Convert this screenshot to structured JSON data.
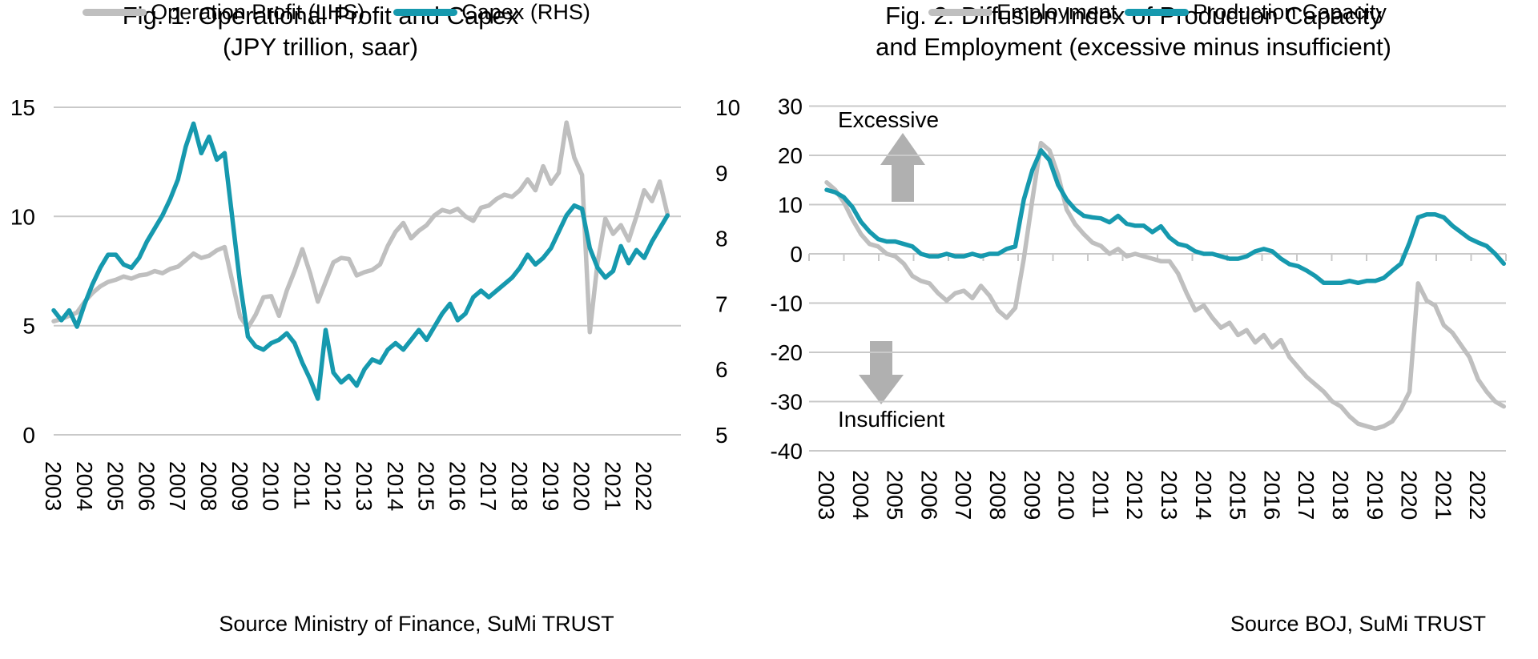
{
  "colors": {
    "profit_gray": "#BFBFBF",
    "capex_teal": "#1699AE",
    "gridline": "#C9C9C9",
    "arrow_gray": "#B0B0B0",
    "text": "#000000"
  },
  "fig1": {
    "title_line1": "Fig. 1. Operational Profit and Capex",
    "title_line2": "(JPY trillion, saar)",
    "source": "Source Ministry of Finance, SuMi TRUST",
    "legend": {
      "profit": "Operation Profit (LHS)",
      "capex": "Capex (RHS)"
    },
    "chart_data": {
      "type": "line",
      "x_unit": "quarterly",
      "x_range": [
        "2003",
        "2022"
      ],
      "x_tick_labels": [
        "2003",
        "2004",
        "2005",
        "2006",
        "2007",
        "2008",
        "2009",
        "2010",
        "2011",
        "2012",
        "2013",
        "2014",
        "2015",
        "2016",
        "2017",
        "2018",
        "2019",
        "2020",
        "2021",
        "2022"
      ],
      "left_axis": {
        "title": "JPY trillion, saar",
        "label_values": [
          15,
          10,
          5,
          0
        ],
        "range": [
          0,
          15
        ]
      },
      "right_axis": {
        "label_values": [
          10,
          9,
          8,
          7,
          6,
          5
        ],
        "range": [
          5,
          10
        ]
      },
      "grid": "horizontal",
      "legend_position": "bottom",
      "series": [
        {
          "name": "Operation Profit (LHS)",
          "axis": "left",
          "color_key": "profit_gray",
          "values": [
            5.2,
            5.3,
            5.45,
            5.6,
            6.1,
            6.5,
            6.8,
            7.0,
            7.1,
            7.25,
            7.15,
            7.3,
            7.35,
            7.5,
            7.4,
            7.6,
            7.7,
            8.0,
            8.3,
            8.1,
            8.2,
            8.45,
            8.6,
            7.0,
            5.4,
            4.9,
            5.5,
            6.3,
            6.35,
            5.45,
            6.6,
            7.5,
            8.5,
            7.4,
            6.1,
            7.0,
            7.9,
            8.1,
            8.05,
            7.3,
            7.45,
            7.55,
            7.8,
            8.65,
            9.3,
            9.7,
            9.0,
            9.35,
            9.6,
            10.05,
            10.3,
            10.2,
            10.35,
            10.0,
            9.8,
            10.4,
            10.5,
            10.8,
            11.0,
            10.9,
            11.2,
            11.7,
            11.2,
            12.3,
            11.5,
            12.0,
            14.3,
            12.7,
            11.9,
            4.7,
            7.9,
            9.9,
            9.2,
            9.6,
            8.9,
            10.0,
            11.2,
            10.7,
            11.6,
            10.1
          ]
        },
        {
          "name": "Capex (RHS)",
          "axis": "right",
          "color_key": "capex_teal",
          "values": [
            6.9,
            6.75,
            6.9,
            6.65,
            7.0,
            7.3,
            7.55,
            7.75,
            7.75,
            7.6,
            7.55,
            7.7,
            7.95,
            8.15,
            8.35,
            8.6,
            8.9,
            9.4,
            9.75,
            9.3,
            9.55,
            9.2,
            9.3,
            8.3,
            7.3,
            6.5,
            6.35,
            6.3,
            6.4,
            6.45,
            6.55,
            6.4,
            6.1,
            5.85,
            5.55,
            6.6,
            5.95,
            5.8,
            5.9,
            5.75,
            6.0,
            6.15,
            6.1,
            6.3,
            6.4,
            6.3,
            6.45,
            6.6,
            6.45,
            6.65,
            6.85,
            7.0,
            6.75,
            6.85,
            7.1,
            7.2,
            7.1,
            7.2,
            7.3,
            7.4,
            7.55,
            7.75,
            7.6,
            7.7,
            7.85,
            8.1,
            8.35,
            8.5,
            8.45,
            7.85,
            7.55,
            7.4,
            7.5,
            7.88,
            7.62,
            7.82,
            7.7,
            7.95,
            8.15,
            8.35
          ]
        }
      ]
    }
  },
  "fig2": {
    "title_line1": "Fig. 2. Diffusion Index of Production Capacity",
    "title_line2": "and Employment (excessive minus insufficient)",
    "source": "Source BOJ, SuMi TRUST",
    "legend": {
      "employment": "Employment",
      "capacity": "Production Capacity"
    },
    "annotations": {
      "top": "Excessive",
      "bottom": "Insufficient"
    },
    "chart_data": {
      "type": "line",
      "x_unit": "quarterly",
      "x_range": [
        "2003",
        "2022"
      ],
      "x_tick_labels": [
        "2003",
        "2004",
        "2005",
        "2006",
        "2007",
        "2008",
        "2009",
        "2010",
        "2011",
        "2012",
        "2013",
        "2014",
        "2015",
        "2016",
        "2017",
        "2018",
        "2019",
        "2020",
        "2021",
        "2022"
      ],
      "left_axis": {
        "label_values": [
          30,
          20,
          10,
          0,
          -10,
          -20,
          -30,
          -40
        ],
        "range": [
          -40,
          30
        ]
      },
      "grid": "horizontal",
      "legend_position": "bottom",
      "series": [
        {
          "name": "Employment",
          "axis": "left",
          "color_key": "profit_gray",
          "values": [
            14.5,
            13,
            10.5,
            7,
            4,
            2,
            1.5,
            0,
            -0.5,
            -2,
            -4.5,
            -5.5,
            -6,
            -8,
            -9.5,
            -8,
            -7.5,
            -9,
            -6.5,
            -8.5,
            -11.5,
            -13,
            -11,
            -1,
            11,
            22.5,
            21,
            16,
            9,
            6,
            4,
            2.3,
            1.6,
            0,
            1,
            -0.5,
            0,
            -0.5,
            -1,
            -1.5,
            -1.5,
            -4,
            -8,
            -11.5,
            -10.5,
            -13,
            -15,
            -14,
            -16.5,
            -15.5,
            -18,
            -16.5,
            -19,
            -17.5,
            -21,
            -23,
            -25,
            -26.5,
            -28,
            -30,
            -31,
            -33,
            -34.5,
            -35,
            -35.5,
            -35,
            -34,
            -31.5,
            -28,
            -6,
            -9.5,
            -10.5,
            -14.5,
            -16,
            -18.5,
            -21,
            -25.5,
            -28,
            -30,
            -31
          ]
        },
        {
          "name": "Production Capacity",
          "axis": "left",
          "color_key": "capex_teal",
          "values": [
            13,
            12.5,
            11.5,
            9.5,
            6.5,
            4.5,
            3,
            2.5,
            2.5,
            2,
            1.5,
            0,
            -0.5,
            -0.5,
            0,
            -0.5,
            -0.5,
            0,
            -0.5,
            0,
            0,
            1,
            1.5,
            11,
            17,
            21,
            19,
            14,
            11,
            9,
            7.7,
            7.4,
            7.2,
            6.4,
            7.7,
            6.1,
            5.7,
            5.7,
            4.4,
            5.6,
            3.3,
            2,
            1.6,
            0.5,
            0,
            0,
            -0.5,
            -1,
            -1,
            -0.5,
            0.5,
            1,
            0.5,
            -1,
            -2.1,
            -2.5,
            -3.4,
            -4.5,
            -5.9,
            -5.9,
            -5.9,
            -5.5,
            -5.9,
            -5.5,
            -5.5,
            -4.9,
            -3.4,
            -2,
            2.3,
            7.4,
            8,
            8,
            7.4,
            5.7,
            4.4,
            3.1,
            2.3,
            1.6,
            0,
            -2
          ]
        }
      ]
    }
  }
}
